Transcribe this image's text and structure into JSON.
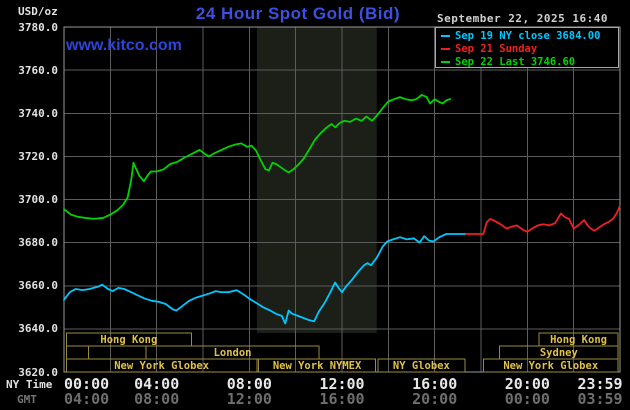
{
  "header": {
    "unit_label": "USD/oz",
    "title": "24 Hour Spot Gold (Bid)",
    "watermark": "www.kitco.com",
    "datetime": "September 22, 2025 16:40"
  },
  "legend": [
    {
      "label": "Sep 19 NY close 3684.00",
      "color": "#00c8ff"
    },
    {
      "label": "Sep 21 Sunday",
      "color": "#f02020"
    },
    {
      "label": "Sep 22 Last 3746.60",
      "color": "#00d400"
    }
  ],
  "axes": {
    "ny_caption": "NY Time",
    "gmt_caption": "GMT",
    "y_ticks": [
      {
        "value": 3780,
        "label": "3780.0"
      },
      {
        "value": 3760,
        "label": "3760.0"
      },
      {
        "value": 3740,
        "label": "3740.0"
      },
      {
        "value": 3720,
        "label": "3720.0"
      },
      {
        "value": 3700,
        "label": "3700.0"
      },
      {
        "value": 3680,
        "label": "3680.0"
      },
      {
        "value": 3660,
        "label": "3660.0"
      },
      {
        "value": 3640,
        "label": "3640.0"
      },
      {
        "value": 3620,
        "label": "3620.0"
      }
    ],
    "ny_ticks": [
      {
        "hour": 0,
        "label": "00:00",
        "align": "left"
      },
      {
        "hour": 4,
        "label": "04:00",
        "align": "center"
      },
      {
        "hour": 8,
        "label": "08:00",
        "align": "center"
      },
      {
        "hour": 12,
        "label": "12:00",
        "align": "center"
      },
      {
        "hour": 16,
        "label": "16:00",
        "align": "center"
      },
      {
        "hour": 20,
        "label": "20:00",
        "align": "center"
      },
      {
        "hour": 23.983,
        "label": "23:59",
        "align": "right"
      }
    ],
    "gmt_ticks": [
      {
        "hour": 0,
        "label": "04:00",
        "align": "left"
      },
      {
        "hour": 4,
        "label": "08:00",
        "align": "center"
      },
      {
        "hour": 8,
        "label": "12:00",
        "align": "center"
      },
      {
        "hour": 12,
        "label": "16:00",
        "align": "center"
      },
      {
        "hour": 16,
        "label": "20:00",
        "align": "center"
      },
      {
        "hour": 20,
        "label": "00:00",
        "align": "center"
      },
      {
        "hour": 23.983,
        "label": "03:59",
        "align": "right"
      }
    ]
  },
  "colors": {
    "background": "#000000",
    "grid": "#5c5c5c",
    "plot_border": "#9a9a9a",
    "band": "#1c1e18",
    "session_border": "#9a8b3e",
    "session_text": "#dfc14c"
  },
  "chart_data": {
    "type": "line",
    "title": "24 Hour Spot Gold (Bid)",
    "xlabel": "NY Time",
    "ylabel": "USD/oz",
    "x_axis": {
      "min_hour": 0,
      "max_hour": 24,
      "gridline_every_hours": 2
    },
    "y_axis": {
      "min": 3620,
      "max": 3780,
      "tick_step": 20,
      "grid": true
    },
    "legend_position": "top-right",
    "band": {
      "name": "new-york-nymex-session",
      "start_hour": 8.33,
      "end_hour": 13.5,
      "color": "#1c1e18"
    },
    "series": [
      {
        "name": "Sep 19 NY close 3684.00",
        "color": "#00c8ff",
        "points": [
          [
            0,
            3653.5
          ],
          [
            0.25,
            3657
          ],
          [
            0.5,
            3658.5
          ],
          [
            0.8,
            3658
          ],
          [
            1.1,
            3658.5
          ],
          [
            1.45,
            3659.5
          ],
          [
            1.65,
            3660.5
          ],
          [
            1.9,
            3658.5
          ],
          [
            2.1,
            3657.5
          ],
          [
            2.35,
            3659
          ],
          [
            2.6,
            3658.5
          ],
          [
            2.9,
            3657
          ],
          [
            3.2,
            3655.5
          ],
          [
            3.5,
            3654
          ],
          [
            3.8,
            3653
          ],
          [
            4.1,
            3652.5
          ],
          [
            4.4,
            3651.5
          ],
          [
            4.7,
            3649
          ],
          [
            4.85,
            3648.5
          ],
          [
            5.1,
            3650.5
          ],
          [
            5.4,
            3653
          ],
          [
            5.7,
            3654.5
          ],
          [
            6.0,
            3655.5
          ],
          [
            6.3,
            3656.5
          ],
          [
            6.55,
            3657.5
          ],
          [
            6.8,
            3657
          ],
          [
            7.1,
            3657
          ],
          [
            7.45,
            3658
          ],
          [
            7.75,
            3656
          ],
          [
            8.0,
            3654
          ],
          [
            8.3,
            3652
          ],
          [
            8.6,
            3650
          ],
          [
            8.9,
            3648.5
          ],
          [
            9.15,
            3647
          ],
          [
            9.4,
            3646
          ],
          [
            9.55,
            3642.5
          ],
          [
            9.7,
            3648.5
          ],
          [
            9.85,
            3647
          ],
          [
            10.1,
            3646
          ],
          [
            10.35,
            3645
          ],
          [
            10.6,
            3644
          ],
          [
            10.8,
            3643.5
          ],
          [
            11.0,
            3648
          ],
          [
            11.25,
            3652
          ],
          [
            11.5,
            3657
          ],
          [
            11.7,
            3661.5
          ],
          [
            11.85,
            3659
          ],
          [
            12.0,
            3657
          ],
          [
            12.2,
            3660
          ],
          [
            12.45,
            3663
          ],
          [
            12.7,
            3666.5
          ],
          [
            12.95,
            3669.5
          ],
          [
            13.1,
            3670.5
          ],
          [
            13.25,
            3669.5
          ],
          [
            13.5,
            3673
          ],
          [
            13.75,
            3678
          ],
          [
            13.95,
            3680.5
          ],
          [
            14.2,
            3681.5
          ],
          [
            14.5,
            3682.5
          ],
          [
            14.8,
            3681.5
          ],
          [
            15.1,
            3682
          ],
          [
            15.35,
            3680
          ],
          [
            15.55,
            3683
          ],
          [
            15.75,
            3681
          ],
          [
            15.95,
            3680.5
          ],
          [
            16.2,
            3682.5
          ],
          [
            16.5,
            3684
          ],
          [
            16.9,
            3684
          ],
          [
            17.35,
            3684
          ]
        ]
      },
      {
        "name": "Sep 21 Sunday",
        "color": "#f02020",
        "points": [
          [
            17.35,
            3684
          ],
          [
            18.1,
            3684
          ],
          [
            18.25,
            3689.5
          ],
          [
            18.4,
            3691
          ],
          [
            18.6,
            3690
          ],
          [
            18.85,
            3688.5
          ],
          [
            19.1,
            3686.5
          ],
          [
            19.35,
            3687.5
          ],
          [
            19.55,
            3688
          ],
          [
            19.8,
            3686
          ],
          [
            20.0,
            3685
          ],
          [
            20.2,
            3686.5
          ],
          [
            20.45,
            3688
          ],
          [
            20.7,
            3688.5
          ],
          [
            20.95,
            3688
          ],
          [
            21.2,
            3689
          ],
          [
            21.45,
            3693.5
          ],
          [
            21.6,
            3692
          ],
          [
            21.8,
            3691
          ],
          [
            22.0,
            3686.5
          ],
          [
            22.2,
            3688
          ],
          [
            22.45,
            3690.5
          ],
          [
            22.6,
            3688
          ],
          [
            22.75,
            3686.5
          ],
          [
            22.9,
            3685.5
          ],
          [
            23.1,
            3687
          ],
          [
            23.3,
            3688.5
          ],
          [
            23.5,
            3689.5
          ],
          [
            23.7,
            3691
          ],
          [
            23.85,
            3693.5
          ],
          [
            23.98,
            3696.5
          ]
        ]
      },
      {
        "name": "Sep 22 Last 3746.60",
        "color": "#00d400",
        "points": [
          [
            0,
            3695.5
          ],
          [
            0.3,
            3693
          ],
          [
            0.6,
            3692
          ],
          [
            0.9,
            3691.5
          ],
          [
            1.3,
            3691
          ],
          [
            1.7,
            3691.5
          ],
          [
            2.0,
            3693
          ],
          [
            2.3,
            3695
          ],
          [
            2.55,
            3697.5
          ],
          [
            2.75,
            3701
          ],
          [
            2.9,
            3709
          ],
          [
            3.0,
            3717
          ],
          [
            3.1,
            3714.5
          ],
          [
            3.25,
            3711
          ],
          [
            3.45,
            3708.5
          ],
          [
            3.6,
            3711
          ],
          [
            3.75,
            3713
          ],
          [
            4.0,
            3713
          ],
          [
            4.3,
            3714
          ],
          [
            4.6,
            3716.5
          ],
          [
            4.9,
            3717.5
          ],
          [
            5.2,
            3719.5
          ],
          [
            5.5,
            3721
          ],
          [
            5.85,
            3723
          ],
          [
            6.1,
            3721
          ],
          [
            6.25,
            3720
          ],
          [
            6.5,
            3721.5
          ],
          [
            6.8,
            3723
          ],
          [
            7.1,
            3724.5
          ],
          [
            7.4,
            3725.5
          ],
          [
            7.65,
            3726
          ],
          [
            7.9,
            3724.5
          ],
          [
            8.1,
            3725
          ],
          [
            8.3,
            3722.5
          ],
          [
            8.5,
            3718
          ],
          [
            8.7,
            3714
          ],
          [
            8.85,
            3713.5
          ],
          [
            9.0,
            3717
          ],
          [
            9.15,
            3716.5
          ],
          [
            9.35,
            3715
          ],
          [
            9.55,
            3713.5
          ],
          [
            9.7,
            3712.5
          ],
          [
            9.9,
            3714
          ],
          [
            10.1,
            3716
          ],
          [
            10.35,
            3719
          ],
          [
            10.6,
            3723.5
          ],
          [
            10.85,
            3728
          ],
          [
            11.1,
            3731
          ],
          [
            11.35,
            3733.5
          ],
          [
            11.55,
            3735
          ],
          [
            11.7,
            3733.5
          ],
          [
            11.9,
            3735.5
          ],
          [
            12.1,
            3736.5
          ],
          [
            12.35,
            3736
          ],
          [
            12.6,
            3737.5
          ],
          [
            12.85,
            3736.5
          ],
          [
            13.05,
            3738.5
          ],
          [
            13.3,
            3736.5
          ],
          [
            13.55,
            3739.5
          ],
          [
            13.8,
            3743
          ],
          [
            14.0,
            3745.5
          ],
          [
            14.25,
            3746.5
          ],
          [
            14.5,
            3747.5
          ],
          [
            14.75,
            3746.5
          ],
          [
            15.0,
            3746
          ],
          [
            15.2,
            3746.5
          ],
          [
            15.45,
            3748.5
          ],
          [
            15.65,
            3747.5
          ],
          [
            15.8,
            3744.5
          ],
          [
            16.0,
            3746.5
          ],
          [
            16.15,
            3745.5
          ],
          [
            16.35,
            3744.5
          ],
          [
            16.5,
            3746
          ],
          [
            16.67,
            3746.6
          ]
        ]
      }
    ],
    "sessions": [
      {
        "row": 0,
        "label": "Hong Kong",
        "start_hour": 0.1,
        "end_hour": 5.5
      },
      {
        "row": 0,
        "label": "Hong Kong",
        "start_hour": 20.5,
        "end_hour": 23.92
      },
      {
        "row": 1,
        "label": "",
        "start_hour": 0.1,
        "end_hour": 1.05
      },
      {
        "row": 1,
        "label": "London",
        "start_hour": 3.55,
        "end_hour": 11.0
      },
      {
        "row": 1,
        "label": "Sydney",
        "start_hour": 18.8,
        "end_hour": 23.92
      },
      {
        "row": 2,
        "label": "New York Globex",
        "start_hour": 0.1,
        "end_hour": 8.33
      },
      {
        "row": 2,
        "label": "New York NYMEX",
        "start_hour": 8.4,
        "end_hour": 13.45
      },
      {
        "row": 2,
        "label": "NY Globex",
        "start_hour": 13.55,
        "end_hour": 17.3
      },
      {
        "row": 2,
        "label": "New York Globex",
        "start_hour": 18.1,
        "end_hour": 23.92
      }
    ]
  }
}
